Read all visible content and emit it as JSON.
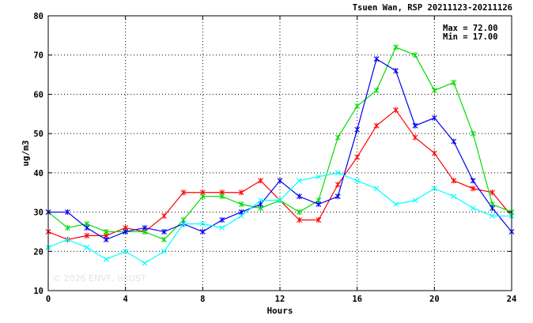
{
  "chart_data": {
    "type": "line",
    "title": "Tsuen Wan, RSP 20211123-20211126",
    "xlabel": "Hours",
    "ylabel": "ug/m3",
    "xlim": [
      0,
      24
    ],
    "ylim": [
      10,
      80
    ],
    "x_ticks": [
      0,
      4,
      8,
      12,
      16,
      20,
      24
    ],
    "y_ticks": [
      10,
      20,
      30,
      40,
      50,
      60,
      70,
      80
    ],
    "grid": true,
    "max_label": "Max = 72.00",
    "min_label": "Min = 17.00",
    "watermark": "© 2026  ENVF, HKUST",
    "x": [
      0,
      1,
      2,
      3,
      4,
      5,
      6,
      7,
      8,
      9,
      10,
      11,
      12,
      13,
      14,
      15,
      16,
      17,
      18,
      19,
      20,
      21,
      22,
      23,
      24
    ],
    "series": [
      {
        "color": "#ff0000",
        "marker": "asterisk",
        "values": [
          25,
          23,
          24,
          24,
          26,
          25,
          29,
          35,
          35,
          35,
          35,
          38,
          33,
          28,
          28,
          37,
          44,
          52,
          56,
          49,
          45,
          38,
          36,
          35,
          29
        ]
      },
      {
        "color": "#00dd00",
        "marker": "asterisk",
        "values": [
          30,
          26,
          27,
          25,
          25,
          25,
          23,
          28,
          34,
          34,
          32,
          31,
          33,
          30,
          33,
          49,
          57,
          61,
          72,
          70,
          61,
          63,
          50,
          32,
          30
        ]
      },
      {
        "color": "#0000ee",
        "marker": "asterisk",
        "values": [
          30,
          30,
          26,
          23,
          25,
          26,
          25,
          27,
          25,
          28,
          30,
          32,
          38,
          34,
          32,
          34,
          51,
          69,
          66,
          52,
          54,
          48,
          38,
          31,
          25
        ]
      },
      {
        "color": "#00ffff",
        "marker": "x",
        "values": [
          21,
          23,
          21,
          18,
          20,
          17,
          20,
          27,
          27,
          26,
          29,
          33,
          33,
          38,
          39,
          40,
          38,
          36,
          32,
          33,
          36,
          34,
          31,
          29,
          29
        ]
      }
    ]
  }
}
